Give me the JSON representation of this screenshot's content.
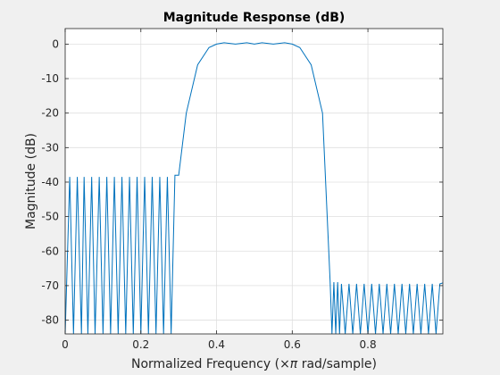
{
  "chart_data": {
    "type": "line",
    "title": "Magnitude Response (dB)",
    "xlabel_prefix": "Normalized Frequency  (",
    "xlabel_symbol": "×π",
    "xlabel_suffix": " rad/sample)",
    "ylabel": "Magnitude (dB)",
    "xlim": [
      0,
      0.998
    ],
    "ylim": [
      -84,
      4.5
    ],
    "xticks": [
      0,
      0.2,
      0.4,
      0.6,
      0.8
    ],
    "xtick_labels": [
      "0",
      "0.2",
      "0.4",
      "0.6",
      "0.8"
    ],
    "yticks": [
      0,
      -10,
      -20,
      -30,
      -40,
      -50,
      -60,
      -70,
      -80
    ],
    "ytick_labels": [
      "0",
      "-10",
      "-20",
      "-30",
      "-40",
      "-50",
      "-60",
      "-70",
      "-80"
    ],
    "grid": true,
    "line_color": "#0072bd",
    "series": [
      {
        "x": [
          0,
          0.012,
          0.022,
          0.032,
          0.043,
          0.05,
          0.06,
          0.07,
          0.079,
          0.09,
          0.1,
          0.11,
          0.12,
          0.13,
          0.14,
          0.15,
          0.16,
          0.17,
          0.18,
          0.19,
          0.2,
          0.21,
          0.22,
          0.23,
          0.24,
          0.25,
          0.26,
          0.27,
          0.28,
          0.29,
          0.3,
          0.32,
          0.35,
          0.38,
          0.4,
          0.42,
          0.45,
          0.48,
          0.5,
          0.52,
          0.55,
          0.58,
          0.6,
          0.62,
          0.65,
          0.68,
          0.7,
          0.705,
          0.71,
          0.715,
          0.72,
          0.725,
          0.73,
          0.74,
          0.75,
          0.76,
          0.77,
          0.78,
          0.79,
          0.8,
          0.81,
          0.82,
          0.83,
          0.84,
          0.85,
          0.86,
          0.87,
          0.88,
          0.89,
          0.9,
          0.91,
          0.92,
          0.93,
          0.94,
          0.95,
          0.96,
          0.97,
          0.98,
          0.99,
          0.998
        ],
        "y": [
          -84,
          -38.5,
          -84,
          -38.5,
          -84,
          -38.5,
          -84,
          -38.5,
          -84,
          -38.5,
          -84,
          -38.5,
          -84,
          -38.5,
          -84,
          -38.5,
          -84,
          -38.5,
          -84,
          -38.5,
          -84,
          -38.5,
          -84,
          -38.5,
          -84,
          -38.5,
          -84,
          -38.5,
          -84,
          -38,
          -38,
          -20,
          -6,
          -1,
          0,
          0.4,
          0,
          0.4,
          0,
          0.4,
          0,
          0.4,
          0,
          -1,
          -6,
          -20,
          -68.5,
          -84,
          -69,
          -84,
          -69,
          -84,
          -69.5,
          -84,
          -69.5,
          -84,
          -69.5,
          -84,
          -69.5,
          -84,
          -69.5,
          -84,
          -69.5,
          -84,
          -69.5,
          -84,
          -69.5,
          -84,
          -69.5,
          -84,
          -69.5,
          -84,
          -69.5,
          -84,
          -69.5,
          -84,
          -69.5,
          -84,
          -69.5,
          -69.2
        ]
      }
    ]
  }
}
